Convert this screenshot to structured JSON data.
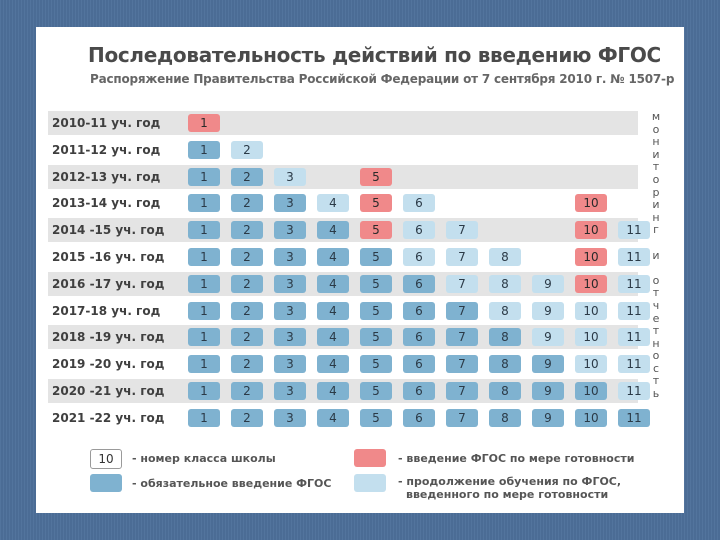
{
  "title": "Последовательность действий по введению ФГОС",
  "subtitle": "Распоряжение Правительства Российской Федерации от 7 сентября 2010 г. № 1507-р",
  "side_text": [
    "м",
    "о",
    "н",
    "и",
    "т",
    "о",
    "р",
    "и",
    "н",
    "г",
    "",
    "и",
    "",
    "о",
    "т",
    "ч",
    "е",
    "т",
    "н",
    "о",
    "с",
    "т",
    "ь"
  ],
  "colors": {
    "mandatory": "#7fb2d0",
    "readiness": "#f0898a",
    "continue": "#c3dfee",
    "row_shade": "#e4e4e4"
  },
  "rows": [
    {
      "year": "2010-11 уч. год",
      "cells": [
        [
          "1",
          "r"
        ]
      ]
    },
    {
      "year": "2011-12 уч. год",
      "cells": [
        [
          "1",
          "m"
        ],
        [
          "2",
          "c"
        ]
      ]
    },
    {
      "year": "2012-13 уч. год",
      "cells": [
        [
          "1",
          "m"
        ],
        [
          "2",
          "m"
        ],
        [
          "3",
          "c"
        ],
        [
          "5",
          "r"
        ]
      ]
    },
    {
      "year": "2013-14 уч. год",
      "cells": [
        [
          "1",
          "m"
        ],
        [
          "2",
          "m"
        ],
        [
          "3",
          "m"
        ],
        [
          "4",
          "c"
        ],
        [
          "5",
          "r"
        ],
        [
          "6",
          "c"
        ],
        [
          "10",
          "r"
        ]
      ]
    },
    {
      "year": "2014 -15 уч. год",
      "cells": [
        [
          "1",
          "m"
        ],
        [
          "2",
          "m"
        ],
        [
          "3",
          "m"
        ],
        [
          "4",
          "m"
        ],
        [
          "5",
          "r"
        ],
        [
          "6",
          "c"
        ],
        [
          "7",
          "c"
        ],
        [
          "10",
          "r"
        ],
        [
          "11",
          "c"
        ]
      ]
    },
    {
      "year": "2015 -16 уч. год",
      "cells": [
        [
          "1",
          "m"
        ],
        [
          "2",
          "m"
        ],
        [
          "3",
          "m"
        ],
        [
          "4",
          "m"
        ],
        [
          "5",
          "m"
        ],
        [
          "6",
          "c"
        ],
        [
          "7",
          "c"
        ],
        [
          "8",
          "c"
        ],
        [
          "10",
          "r"
        ],
        [
          "11",
          "c"
        ]
      ]
    },
    {
      "year": "2016 -17 уч. год",
      "cells": [
        [
          "1",
          "m"
        ],
        [
          "2",
          "m"
        ],
        [
          "3",
          "m"
        ],
        [
          "4",
          "m"
        ],
        [
          "5",
          "m"
        ],
        [
          "6",
          "m"
        ],
        [
          "7",
          "c"
        ],
        [
          "8",
          "c"
        ],
        [
          "9",
          "c"
        ],
        [
          "10",
          "r"
        ],
        [
          "11",
          "c"
        ]
      ]
    },
    {
      "year": "2017-18 уч. год",
      "cells": [
        [
          "1",
          "m"
        ],
        [
          "2",
          "m"
        ],
        [
          "3",
          "m"
        ],
        [
          "4",
          "m"
        ],
        [
          "5",
          "m"
        ],
        [
          "6",
          "m"
        ],
        [
          "7",
          "m"
        ],
        [
          "8",
          "c"
        ],
        [
          "9",
          "c"
        ],
        [
          "10",
          "c"
        ],
        [
          "11",
          "c"
        ]
      ]
    },
    {
      "year": "2018 -19 уч. год",
      "cells": [
        [
          "1",
          "m"
        ],
        [
          "2",
          "m"
        ],
        [
          "3",
          "m"
        ],
        [
          "4",
          "m"
        ],
        [
          "5",
          "m"
        ],
        [
          "6",
          "m"
        ],
        [
          "7",
          "m"
        ],
        [
          "8",
          "m"
        ],
        [
          "9",
          "c"
        ],
        [
          "10",
          "c"
        ],
        [
          "11",
          "c"
        ]
      ]
    },
    {
      "year": "2019 -20 уч. год",
      "cells": [
        [
          "1",
          "m"
        ],
        [
          "2",
          "m"
        ],
        [
          "3",
          "m"
        ],
        [
          "4",
          "m"
        ],
        [
          "5",
          "m"
        ],
        [
          "6",
          "m"
        ],
        [
          "7",
          "m"
        ],
        [
          "8",
          "m"
        ],
        [
          "9",
          "m"
        ],
        [
          "10",
          "c"
        ],
        [
          "11",
          "c"
        ]
      ]
    },
    {
      "year": "2020 -21 уч. год",
      "cells": [
        [
          "1",
          "m"
        ],
        [
          "2",
          "m"
        ],
        [
          "3",
          "m"
        ],
        [
          "4",
          "m"
        ],
        [
          "5",
          "m"
        ],
        [
          "6",
          "m"
        ],
        [
          "7",
          "m"
        ],
        [
          "8",
          "m"
        ],
        [
          "9",
          "m"
        ],
        [
          "10",
          "m"
        ],
        [
          "11",
          "c"
        ]
      ]
    },
    {
      "year": "2021 -22 уч. год",
      "cells": [
        [
          "1",
          "m"
        ],
        [
          "2",
          "m"
        ],
        [
          "3",
          "m"
        ],
        [
          "4",
          "m"
        ],
        [
          "5",
          "m"
        ],
        [
          "6",
          "m"
        ],
        [
          "7",
          "m"
        ],
        [
          "8",
          "m"
        ],
        [
          "9",
          "m"
        ],
        [
          "10",
          "m"
        ],
        [
          "11",
          "m"
        ]
      ]
    }
  ],
  "legend": {
    "number_sample": "10",
    "number_label": "- номер класса школы",
    "mandatory_label": "- обязательное введение ФГОС",
    "readiness_label": "- введение ФГОС по мере готовности",
    "continue_label_1": "- продолжение обучения по ФГОС,",
    "continue_label_2": "введенного по мере готовности"
  }
}
